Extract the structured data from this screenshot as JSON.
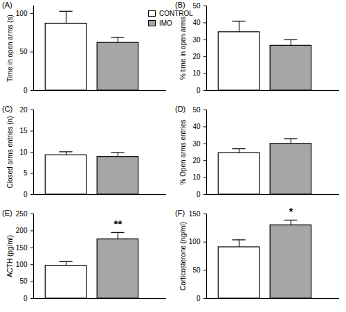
{
  "chart_data": [
    {
      "type": "bar",
      "title": "(A)",
      "y_label": "Time in open arms (s)",
      "series": [
        {
          "name": "CONTROL",
          "color": "#ffffff",
          "values": [
            87
          ],
          "errors": [
            16
          ]
        },
        {
          "name": "IMO",
          "color": "#a6a6a6",
          "values": [
            62
          ],
          "errors": [
            7
          ]
        }
      ],
      "ylim": [
        0,
        110
      ],
      "yticks": [
        0,
        50,
        100
      ],
      "legend": "top right",
      "tick_labels": "y"
    },
    {
      "type": "bar",
      "title": "(B)",
      "y_label": "% time in open arms",
      "series": [
        {
          "name": "CONTROL",
          "color": "#ffffff",
          "values": [
            34.5
          ],
          "errors": [
            6.5
          ]
        },
        {
          "name": "IMO",
          "color": "#a6a6a6",
          "values": [
            26.5
          ],
          "errors": [
            3.5
          ]
        }
      ],
      "ylim": [
        0,
        50
      ],
      "yticks": [
        0,
        10,
        20,
        30,
        40,
        50
      ],
      "tick_labels": "y"
    },
    {
      "type": "bar",
      "title": "(C)",
      "y_label": "Closed arms entries (n)",
      "series": [
        {
          "name": "CONTROL",
          "color": "#ffffff",
          "values": [
            9.3
          ],
          "errors": [
            0.8
          ]
        },
        {
          "name": "IMO",
          "color": "#a6a6a6",
          "values": [
            8.9
          ],
          "errors": [
            1.0
          ]
        }
      ],
      "ylim": [
        0,
        20
      ],
      "yticks": [
        0,
        5,
        10,
        15,
        20
      ],
      "tick_labels": "y"
    },
    {
      "type": "bar",
      "title": "(D)",
      "y_label": "% Open arms entries",
      "series": [
        {
          "name": "CONTROL",
          "color": "#ffffff",
          "values": [
            24.5
          ],
          "errors": [
            2.5
          ]
        },
        {
          "name": "IMO",
          "color": "#a6a6a6",
          "values": [
            30
          ],
          "errors": [
            3
          ]
        }
      ],
      "ylim": [
        0,
        50
      ],
      "yticks": [
        0,
        10,
        20,
        30,
        40,
        50
      ],
      "tick_labels": "y"
    },
    {
      "type": "bar",
      "title": "(E)",
      "y_label": "ACTH (pg/ml)",
      "series": [
        {
          "name": "CONTROL",
          "color": "#ffffff",
          "values": [
            97
          ],
          "errors": [
            12
          ]
        },
        {
          "name": "IMO",
          "color": "#a6a6a6",
          "values": [
            175
          ],
          "errors": [
            20
          ]
        }
      ],
      "ylim": [
        0,
        250
      ],
      "yticks": [
        0,
        50,
        100,
        150,
        200,
        250
      ],
      "tick_labels": "y",
      "annotations": [
        {
          "series": "IMO",
          "text": "**"
        }
      ]
    },
    {
      "type": "bar",
      "title": "(F)",
      "y_label": "Corticosterone (ng/ml)",
      "series": [
        {
          "name": "CONTROL",
          "color": "#ffffff",
          "values": [
            91
          ],
          "errors": [
            13
          ]
        },
        {
          "name": "IMO",
          "color": "#a6a6a6",
          "values": [
            130
          ],
          "errors": [
            9
          ]
        }
      ],
      "ylim": [
        0,
        150
      ],
      "yticks": [
        0,
        50,
        100,
        150
      ],
      "tick_labels": "y",
      "annotations": [
        {
          "series": "IMO",
          "text": "*"
        }
      ]
    }
  ]
}
